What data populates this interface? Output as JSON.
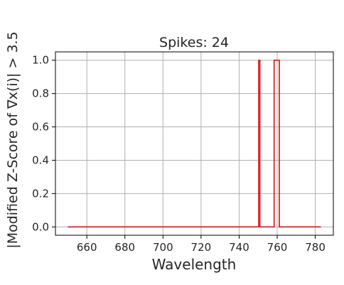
{
  "chart_data": {
    "type": "line",
    "title": "Spikes: 24",
    "xlabel": "Wavelength",
    "ylabel": "|Modified Z-Score of ∇x(i)| > 3.5",
    "xlim": [
      643.5,
      789.5
    ],
    "ylim": [
      -0.05,
      1.05
    ],
    "xticks": [
      660,
      680,
      700,
      720,
      740,
      760,
      780
    ],
    "yticks": [
      0.0,
      0.2,
      0.4,
      0.6,
      0.8,
      1.0
    ],
    "ytick_labels": [
      "0.0",
      "0.2",
      "0.4",
      "0.6",
      "0.8",
      "1.0"
    ],
    "grid": true,
    "series": [
      {
        "color": "#d62728",
        "x": [
          650,
          750.3,
          750.3,
          750.9,
          750.9,
          758.4,
          758.4,
          761.1,
          761.1,
          783
        ],
        "y": [
          0,
          0,
          1,
          1,
          0,
          0,
          1,
          1,
          0,
          0
        ]
      }
    ]
  }
}
